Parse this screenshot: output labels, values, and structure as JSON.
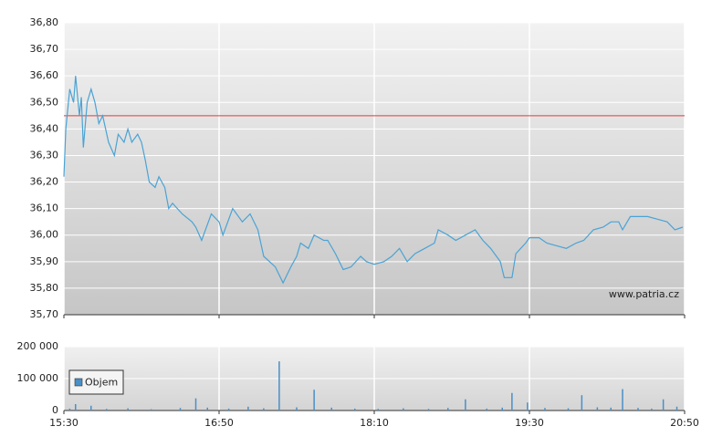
{
  "chart_data": [
    {
      "type": "line",
      "xlim": [
        930,
        1250
      ],
      "ylim": [
        35.7,
        36.8
      ],
      "yticks": [
        {
          "value": 35.7,
          "label": "35,70"
        },
        {
          "value": 35.8,
          "label": "35,80"
        },
        {
          "value": 35.9,
          "label": "35,90"
        },
        {
          "value": 36.0,
          "label": "36,00"
        },
        {
          "value": 36.1,
          "label": "36,10"
        },
        {
          "value": 36.2,
          "label": "36,20"
        },
        {
          "value": 36.3,
          "label": "36,30"
        },
        {
          "value": 36.4,
          "label": "36,40"
        },
        {
          "value": 36.5,
          "label": "36,50"
        },
        {
          "value": 36.6,
          "label": "36,60"
        },
        {
          "value": 36.7,
          "label": "36,70"
        },
        {
          "value": 36.8,
          "label": "36,80"
        }
      ],
      "grid": true,
      "reference_line": {
        "value": 36.45,
        "color": "#e03c3c"
      },
      "watermark": "www.patria.cz",
      "series": [
        {
          "color": "#4aa3d5",
          "x": [
            930,
            931,
            933,
            935,
            936,
            938,
            939,
            940,
            942,
            944,
            946,
            948,
            950,
            953,
            956,
            958,
            961,
            963,
            965,
            968,
            970,
            972,
            974,
            977,
            979,
            982,
            984,
            986,
            991,
            996,
            998,
            1001,
            1003,
            1006,
            1010,
            1012,
            1017,
            1022,
            1026,
            1030,
            1033,
            1036,
            1039,
            1043,
            1047,
            1050,
            1052,
            1056,
            1059,
            1064,
            1066,
            1070,
            1074,
            1078,
            1083,
            1086,
            1090,
            1095,
            1099,
            1103,
            1107,
            1111,
            1116,
            1121,
            1123,
            1128,
            1132,
            1137,
            1142,
            1146,
            1150,
            1155,
            1157,
            1161,
            1163,
            1168,
            1170,
            1175,
            1179,
            1184,
            1189,
            1194,
            1198,
            1203,
            1208,
            1212,
            1216,
            1218,
            1222,
            1226,
            1231,
            1236,
            1241,
            1245,
            1249
          ],
          "values": [
            36.22,
            36.4,
            36.55,
            36.5,
            36.6,
            36.45,
            36.52,
            36.33,
            36.5,
            36.55,
            36.5,
            36.42,
            36.45,
            36.35,
            36.3,
            36.38,
            36.35,
            36.4,
            36.35,
            36.38,
            36.35,
            36.28,
            36.2,
            36.18,
            36.22,
            36.18,
            36.1,
            36.12,
            36.08,
            36.05,
            36.03,
            35.98,
            36.02,
            36.08,
            36.05,
            36.0,
            36.1,
            36.05,
            36.08,
            36.02,
            35.92,
            35.9,
            35.88,
            35.82,
            35.88,
            35.92,
            35.97,
            35.95,
            36.0,
            35.98,
            35.98,
            35.93,
            35.87,
            35.88,
            35.92,
            35.9,
            35.89,
            35.9,
            35.92,
            35.95,
            35.9,
            35.93,
            35.95,
            35.97,
            36.02,
            36.0,
            35.98,
            36.0,
            36.02,
            35.98,
            35.95,
            35.9,
            35.84,
            35.84,
            35.93,
            35.97,
            35.99,
            35.99,
            35.97,
            35.96,
            35.95,
            35.97,
            35.98,
            36.02,
            36.03,
            36.05,
            36.05,
            36.02,
            36.07,
            36.07,
            36.07,
            36.06,
            36.05,
            36.02,
            36.03
          ]
        }
      ]
    },
    {
      "type": "bar",
      "xlim": [
        930,
        1250
      ],
      "ylim": [
        0,
        200000
      ],
      "xticks": [
        {
          "value": 930,
          "label": "15:30"
        },
        {
          "value": 1010,
          "label": "16:50"
        },
        {
          "value": 1090,
          "label": "18:10"
        },
        {
          "value": 1170,
          "label": "19:30"
        },
        {
          "value": 1250,
          "label": "20:50"
        }
      ],
      "yticks": [
        0,
        {
          "value": 100000,
          "label": "100 000"
        },
        {
          "value": 200000,
          "label": "200 000"
        }
      ],
      "grid": true,
      "legend": "top-left",
      "series": [
        {
          "name": "Objem",
          "color": "#4a8fc6",
          "x": [
            933,
            936,
            944,
            952,
            963,
            975,
            990,
            998,
            1004,
            1015,
            1025,
            1033,
            1041,
            1050,
            1059,
            1068,
            1080,
            1092,
            1105,
            1118,
            1128,
            1137,
            1148,
            1156,
            1161,
            1169,
            1178,
            1190,
            1197,
            1205,
            1212,
            1218,
            1226,
            1233,
            1239,
            1246
          ],
          "values": [
            6000,
            20000,
            15000,
            5000,
            7000,
            4000,
            8000,
            38000,
            9000,
            6000,
            12000,
            7000,
            154000,
            10000,
            65000,
            9000,
            6000,
            5000,
            7000,
            5000,
            8000,
            35000,
            6000,
            9000,
            55000,
            25000,
            8000,
            7000,
            48000,
            10000,
            9000,
            67000,
            8000,
            6000,
            35000,
            12000
          ]
        }
      ]
    }
  ]
}
